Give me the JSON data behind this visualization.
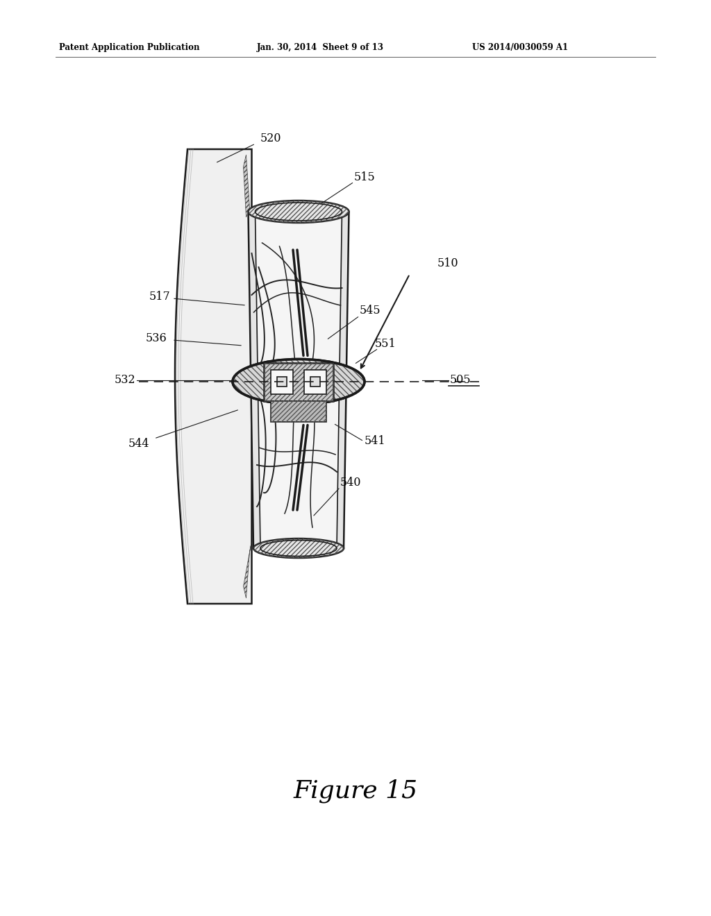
{
  "bg_color": "#ffffff",
  "line_color": "#1a1a1a",
  "header_left": "Patent Application Publication",
  "header_mid": "Jan. 30, 2014  Sheet 9 of 13",
  "header_right": "US 2014/0030059 A1",
  "figure_label": "Figure 15",
  "fig_w": 10.24,
  "fig_h": 13.2,
  "dpi": 100
}
